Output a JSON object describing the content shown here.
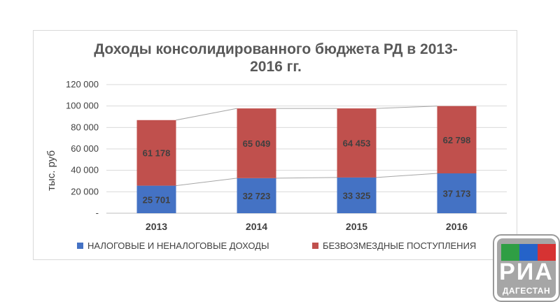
{
  "chart_data": {
    "type": "stacked-bar",
    "title": [
      "Доходы консолидированного бюджета РД в 2013-",
      "2016 гг."
    ],
    "ylabel": "тыс. руб",
    "ylim": [
      0,
      120000
    ],
    "yticks": [
      {
        "value": 0,
        "label": "-"
      },
      {
        "value": 20000,
        "label": "20 000"
      },
      {
        "value": 40000,
        "label": "40 000"
      },
      {
        "value": 60000,
        "label": "60 000"
      },
      {
        "value": 80000,
        "label": "80 000"
      },
      {
        "value": 100000,
        "label": "100 000"
      },
      {
        "value": 120000,
        "label": "120 000"
      }
    ],
    "grid": true,
    "categories": [
      "2013",
      "2014",
      "2015",
      "2016"
    ],
    "series": [
      {
        "name": "НАЛОГОВЫЕ И НЕНАЛОГОВЫЕ ДОХОДЫ",
        "color": "#4472c4",
        "values": [
          25701,
          32723,
          33325,
          37173
        ],
        "labels": [
          "25 701",
          "32 723",
          "33 325",
          "37 173"
        ]
      },
      {
        "name": "БЕЗВОЗМЕЗДНЫЕ ПОСТУПЛЕНИЯ",
        "color": "#c0504d",
        "values": [
          61178,
          65049,
          64453,
          62798
        ],
        "labels": [
          "61 178",
          "65 049",
          "64 453",
          "62 798"
        ]
      }
    ],
    "series_lines": true,
    "legend_position": "bottom"
  },
  "logo": {
    "text": "РИА",
    "subtext": "ДАГЕСТАН"
  }
}
